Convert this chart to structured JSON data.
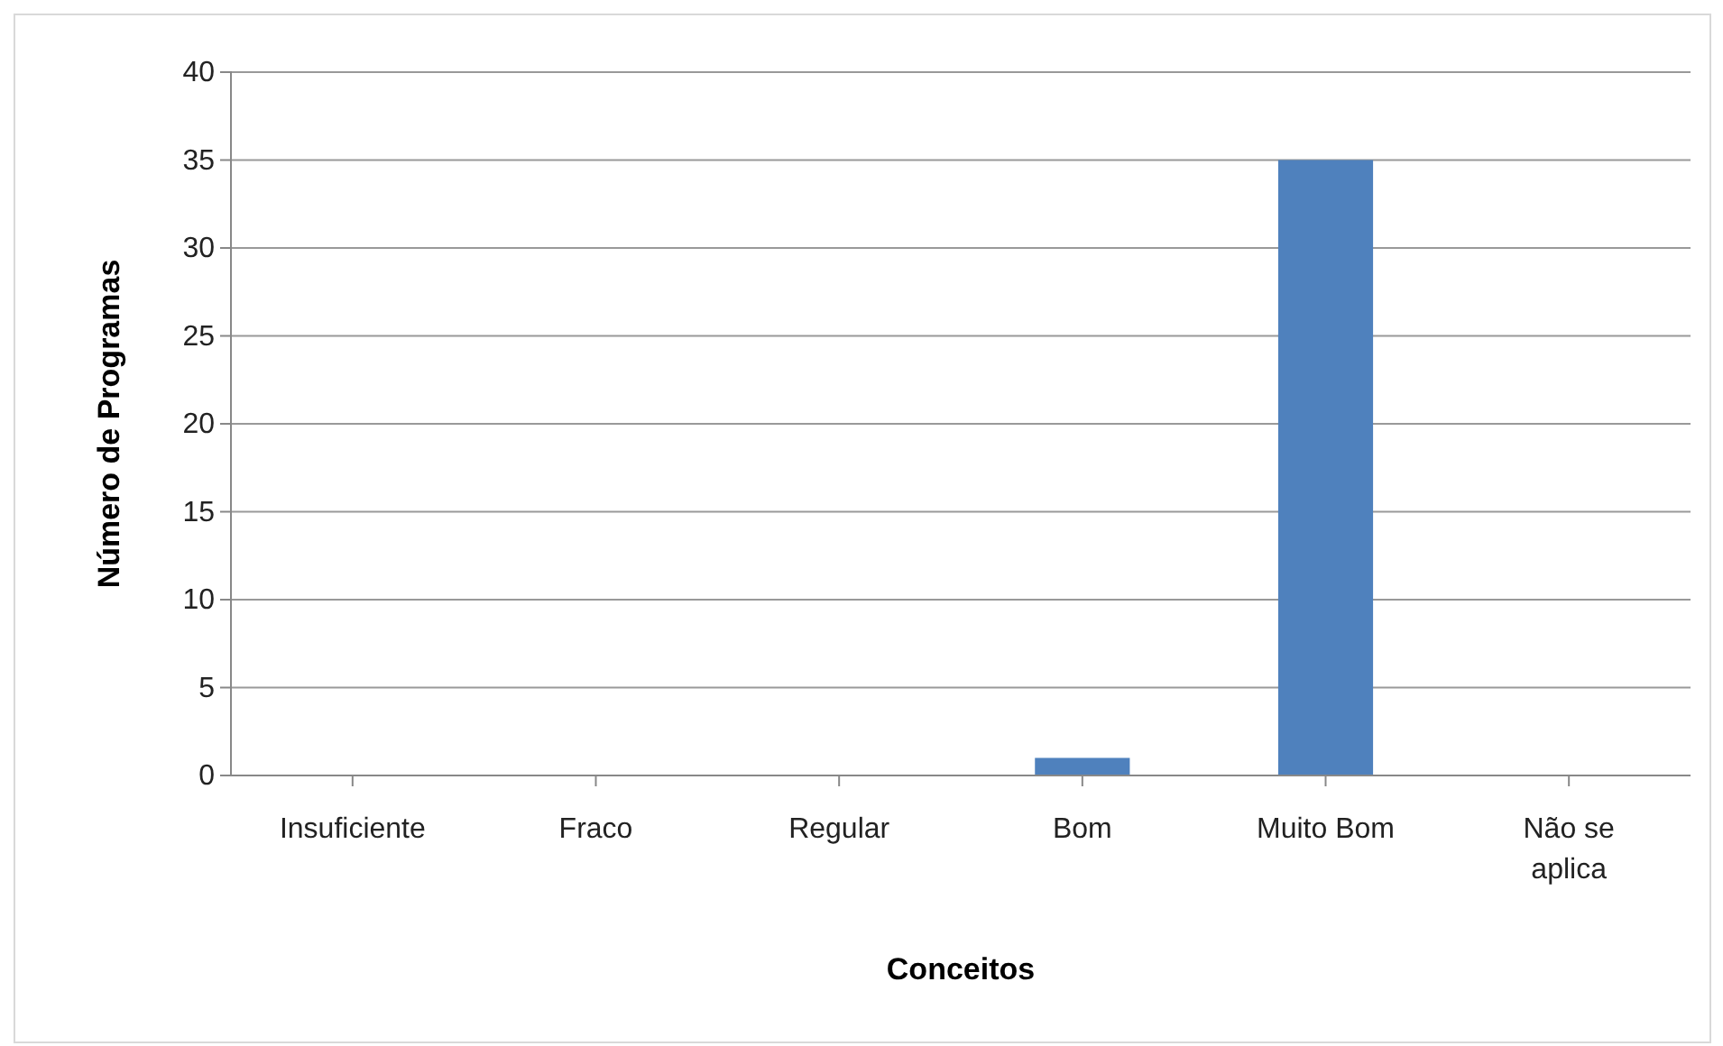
{
  "chart_data": {
    "type": "bar",
    "xlabel": "Conceitos",
    "ylabel": "Número de Programas",
    "categories": [
      "Insuficiente",
      "Fraco",
      "Regular",
      "Bom",
      "Muito Bom",
      "Não se aplica"
    ],
    "values": [
      0,
      0,
      0,
      1,
      35,
      0
    ],
    "color": "#4f81bd",
    "ylim": [
      0,
      40
    ],
    "yticks": [
      0,
      5,
      10,
      15,
      20,
      25,
      30,
      35,
      40
    ],
    "grid": "y",
    "legend": false
  }
}
